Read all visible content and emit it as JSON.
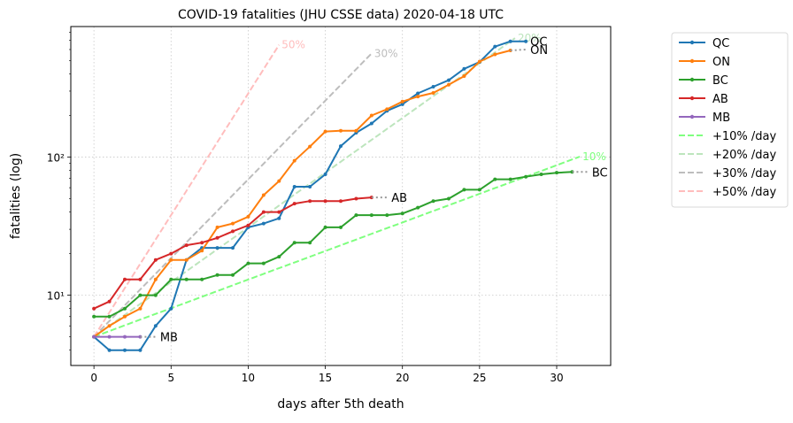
{
  "chart_data": {
    "type": "line",
    "title": "COVID-19 fatalities (JHU CSSE data) 2020-04-18 UTC",
    "xlabel": "days after 5th death",
    "ylabel": "fatalities (log)",
    "xlim": [
      -1.5,
      33.5
    ],
    "ylim": [
      3.1,
      880
    ],
    "yscale": "log",
    "grid": true,
    "legend_position": "outside-right",
    "x_ticks": [
      0,
      5,
      10,
      15,
      20,
      25,
      30
    ],
    "y_ticks": [
      10,
      100
    ],
    "y_tick_labels": [
      "10¹",
      "10²"
    ],
    "series": [
      {
        "name": "QC",
        "color": "#1f77b4",
        "x": [
          0,
          1,
          2,
          3,
          4,
          5,
          6,
          7,
          8,
          9,
          10,
          11,
          12,
          13,
          14,
          15,
          16,
          17,
          18,
          19,
          20,
          21,
          22,
          23,
          24,
          25,
          26,
          27,
          28
        ],
        "values": [
          5,
          4,
          4,
          4,
          6,
          8,
          18,
          22,
          22,
          22,
          31,
          33,
          36,
          61,
          61,
          75,
          120,
          150,
          175,
          216,
          241,
          289,
          323,
          360,
          435,
          487,
          630,
          688,
          688
        ],
        "label": "QC",
        "trail": [
          28,
          688
        ]
      },
      {
        "name": "ON",
        "color": "#ff7f0e",
        "x": [
          0,
          1,
          2,
          3,
          4,
          5,
          6,
          7,
          8,
          9,
          10,
          11,
          12,
          13,
          14,
          15,
          16,
          17,
          18,
          19,
          20,
          21,
          22,
          23,
          24,
          25,
          26,
          27
        ],
        "values": [
          5,
          6,
          7,
          8,
          13,
          18,
          18,
          21,
          31,
          33,
          37,
          53,
          67,
          94,
          119,
          153,
          155,
          155,
          200,
          222,
          252,
          274,
          291,
          334,
          385,
          491,
          553,
          591
        ],
        "label": "ON",
        "trail": [
          28,
          600
        ]
      },
      {
        "name": "BC",
        "color": "#2ca02c",
        "x": [
          0,
          1,
          2,
          3,
          4,
          5,
          6,
          7,
          8,
          9,
          10,
          11,
          12,
          13,
          14,
          15,
          16,
          17,
          18,
          19,
          20,
          21,
          22,
          23,
          24,
          25,
          26,
          27,
          28,
          29,
          30,
          31
        ],
        "values": [
          7,
          7,
          8,
          10,
          10,
          13,
          13,
          13,
          14,
          14,
          17,
          17,
          19,
          24,
          24,
          31,
          31,
          38,
          38,
          38,
          39,
          43,
          48,
          50,
          58,
          58,
          69,
          69,
          72,
          75,
          77,
          78
        ],
        "label": "BC",
        "trail": [
          32,
          78
        ]
      },
      {
        "name": "AB",
        "color": "#d62728",
        "x": [
          0,
          1,
          2,
          3,
          4,
          5,
          6,
          7,
          8,
          9,
          10,
          11,
          12,
          13,
          14,
          15,
          16,
          17,
          18
        ],
        "values": [
          8,
          9,
          13,
          13,
          18,
          20,
          23,
          24,
          26,
          29,
          32,
          40,
          40,
          46,
          48,
          48,
          48,
          50,
          51
        ],
        "label": "AB",
        "trail": [
          19,
          51
        ]
      },
      {
        "name": "MB",
        "color": "#9467bd",
        "x": [
          0,
          1,
          2,
          3
        ],
        "values": [
          5,
          5,
          5,
          5
        ],
        "label": "MB",
        "trail": [
          4,
          5
        ]
      }
    ],
    "reference_lines": [
      {
        "name": "+10% /day",
        "rate": 0.1,
        "x_end": 31.5,
        "color": "#7fff7f",
        "label": "10%"
      },
      {
        "name": "+20% /day",
        "rate": 0.2,
        "x_end": 27.3,
        "color": "#bde5bd",
        "label": "20%"
      },
      {
        "name": "+30% /day",
        "rate": 0.3,
        "x_end": 18.0,
        "color": "#bdbdbd",
        "label": "30%"
      },
      {
        "name": "+50% /day",
        "rate": 0.5,
        "x_end": 12.0,
        "color": "#ffbdbd",
        "label": "50%"
      }
    ],
    "reference_start": 5
  }
}
